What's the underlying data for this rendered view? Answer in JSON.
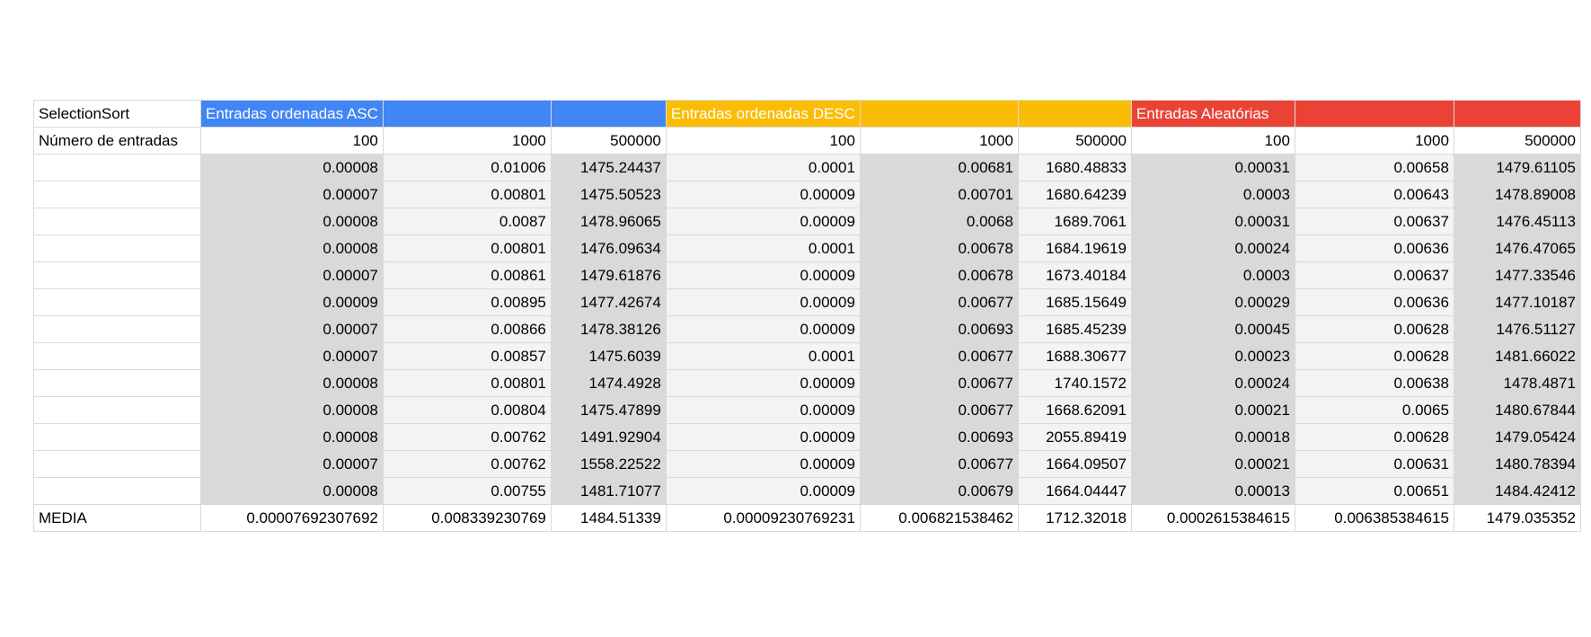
{
  "title_cell": "SelectionSort",
  "groups": [
    {
      "label": "Entradas ordenadas ASC",
      "color": "#4285f4"
    },
    {
      "label": "Entradas ordenadas DESC",
      "color": "#fbbc04"
    },
    {
      "label": "Entradas Aleatórias",
      "color": "#ea4335"
    }
  ],
  "sizes_label": "Número de entradas",
  "sizes": [
    "100",
    "1000",
    "500000",
    "100",
    "1000",
    "500000",
    "100",
    "1000",
    "500000"
  ],
  "rows": [
    [
      "0.00008",
      "0.01006",
      "1475.24437",
      "0.0001",
      "0.00681",
      "1680.48833",
      "0.00031",
      "0.00658",
      "1479.61105"
    ],
    [
      "0.00007",
      "0.00801",
      "1475.50523",
      "0.00009",
      "0.00701",
      "1680.64239",
      "0.0003",
      "0.00643",
      "1478.89008"
    ],
    [
      "0.00008",
      "0.0087",
      "1478.96065",
      "0.00009",
      "0.0068",
      "1689.7061",
      "0.00031",
      "0.00637",
      "1476.45113"
    ],
    [
      "0.00008",
      "0.00801",
      "1476.09634",
      "0.0001",
      "0.00678",
      "1684.19619",
      "0.00024",
      "0.00636",
      "1476.47065"
    ],
    [
      "0.00007",
      "0.00861",
      "1479.61876",
      "0.00009",
      "0.00678",
      "1673.40184",
      "0.0003",
      "0.00637",
      "1477.33546"
    ],
    [
      "0.00009",
      "0.00895",
      "1477.42674",
      "0.00009",
      "0.00677",
      "1685.15649",
      "0.00029",
      "0.00636",
      "1477.10187"
    ],
    [
      "0.00007",
      "0.00866",
      "1478.38126",
      "0.00009",
      "0.00693",
      "1685.45239",
      "0.00045",
      "0.00628",
      "1476.51127"
    ],
    [
      "0.00007",
      "0.00857",
      "1475.6039",
      "0.0001",
      "0.00677",
      "1688.30677",
      "0.00023",
      "0.00628",
      "1481.66022"
    ],
    [
      "0.00008",
      "0.00801",
      "1474.4928",
      "0.00009",
      "0.00677",
      "1740.1572",
      "0.00024",
      "0.00638",
      "1478.4871"
    ],
    [
      "0.00008",
      "0.00804",
      "1475.47899",
      "0.00009",
      "0.00677",
      "1668.62091",
      "0.00021",
      "0.0065",
      "1480.67844"
    ],
    [
      "0.00008",
      "0.00762",
      "1491.92904",
      "0.00009",
      "0.00693",
      "2055.89419",
      "0.00018",
      "0.00628",
      "1479.05424"
    ],
    [
      "0.00007",
      "0.00762",
      "1558.22522",
      "0.00009",
      "0.00677",
      "1664.09507",
      "0.00021",
      "0.00631",
      "1480.78394"
    ],
    [
      "0.00008",
      "0.00755",
      "1481.71077",
      "0.00009",
      "0.00679",
      "1664.04447",
      "0.00013",
      "0.00651",
      "1484.42412"
    ]
  ],
  "media_label": "MEDIA",
  "media": [
    "0.00007692307692",
    "0.008339230769",
    "1484.51339",
    "0.00009230769231",
    "0.006821538462",
    "1712.32018",
    "0.0002615384615",
    "0.006385384615",
    "1479.035352"
  ]
}
